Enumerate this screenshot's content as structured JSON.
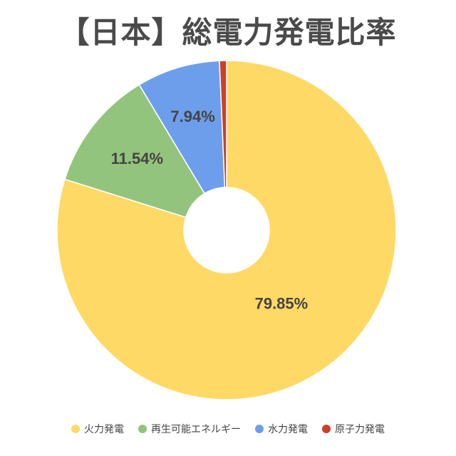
{
  "chart_data": {
    "type": "pie",
    "title": "【日本】総電力発電比率",
    "donut": true,
    "legend_position": "bottom",
    "categories": [
      "火力発電",
      "再生可能エネルギー",
      "水力発電",
      "原子力発電"
    ],
    "values": [
      79.85,
      11.54,
      7.94,
      0.67
    ],
    "data_labels": [
      "79.85%",
      "11.54%",
      "7.94%",
      ""
    ],
    "colors": [
      "#FFD966",
      "#93C47D",
      "#6D9EEB",
      "#CC4125"
    ]
  }
}
